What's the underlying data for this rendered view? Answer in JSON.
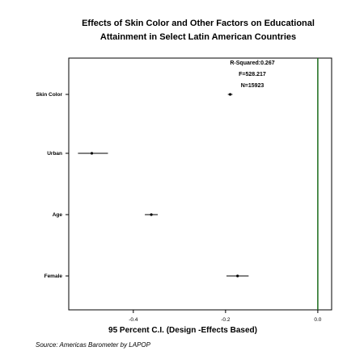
{
  "chart_data": {
    "type": "scatter",
    "title": "Effects of Skin Color and Other Factors on Educational Attainment in Select Latin American Countries",
    "xlabel": "95 Percent C.I. (Design -Effects Based)",
    "xlim": [
      -0.54,
      0.03
    ],
    "xticks": [
      "-0.4",
      "-0.2",
      "0.0"
    ],
    "reference_line": 0.0,
    "grid": false,
    "categories": [
      "Skin Color",
      "Urban",
      "Age",
      "Female"
    ],
    "points": [
      {
        "label": "Skin Color",
        "estimate": -0.19,
        "ci_low": -0.195,
        "ci_high": -0.185
      },
      {
        "label": "Urban",
        "estimate": -0.49,
        "ci_low": -0.52,
        "ci_high": -0.455
      },
      {
        "label": "Age",
        "estimate": -0.361,
        "ci_low": -0.375,
        "ci_high": -0.347
      },
      {
        "label": "Female",
        "estimate": -0.174,
        "ci_low": -0.198,
        "ci_high": -0.15
      }
    ],
    "annotations": [
      "R-Squared:0.267",
      "F=528.217",
      "N=15923"
    ]
  },
  "source": "Source: Americas Barometer by LAPOP",
  "colors": {
    "reference_line": "#1a6b1a",
    "marks": "#000000"
  }
}
